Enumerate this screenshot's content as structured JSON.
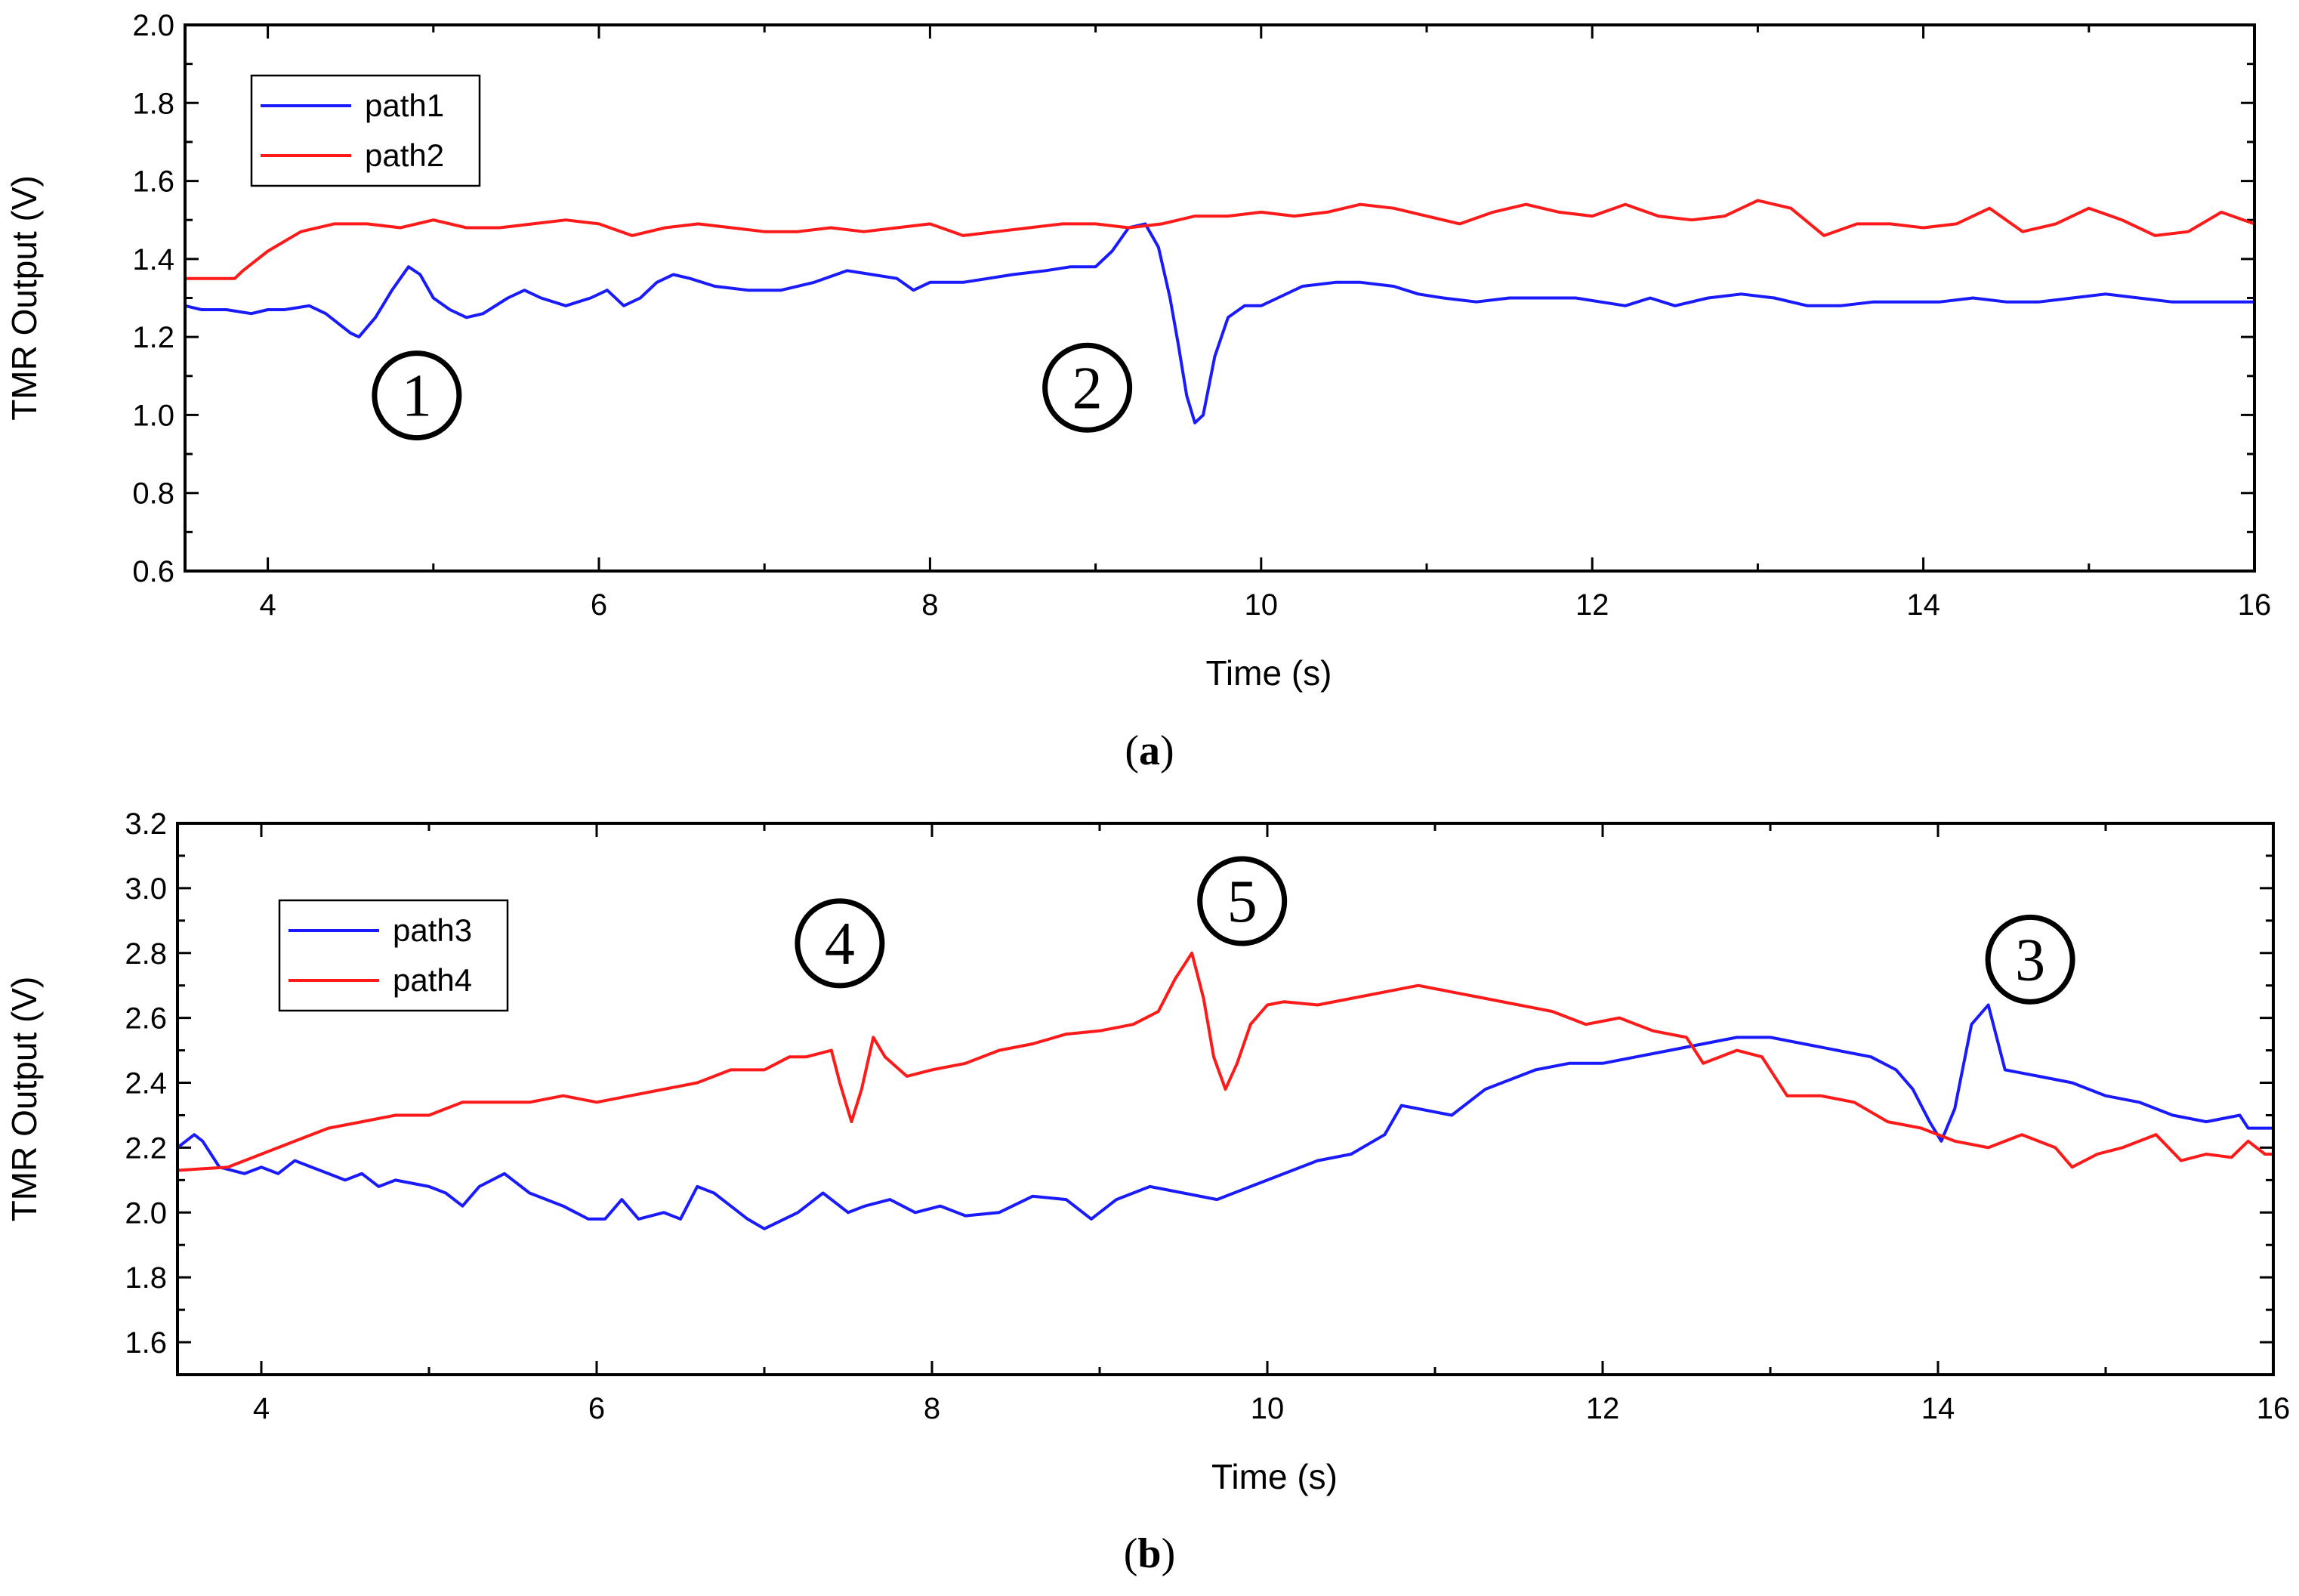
{
  "chart_data": [
    {
      "type": "line",
      "panel_label": "(a)",
      "caption_letter": "a",
      "title": "",
      "xlabel": "Time (s)",
      "ylabel": "TMR Output (V)",
      "xlim": [
        3.5,
        16
      ],
      "ylim": [
        0.6,
        2.0
      ],
      "xticks": [
        4,
        6,
        8,
        10,
        12,
        14,
        16
      ],
      "yticks": [
        0.6,
        0.8,
        1.0,
        1.2,
        1.4,
        1.6,
        1.8,
        2.0
      ],
      "xtick_labels": [
        "4",
        "6",
        "8",
        "10",
        "12",
        "14",
        "16"
      ],
      "ytick_labels": [
        "0.6",
        "0.8",
        "1.0",
        "1.2",
        "1.4",
        "1.6",
        "1.8",
        "2.0"
      ],
      "grid": false,
      "legend_position": "top-left",
      "series": [
        {
          "name": "path1",
          "color": "#1a1aff",
          "x": [
            3.5,
            3.6,
            3.75,
            3.9,
            4.0,
            4.1,
            4.25,
            4.35,
            4.5,
            4.55,
            4.65,
            4.75,
            4.85,
            4.92,
            5.0,
            5.1,
            5.2,
            5.3,
            5.45,
            5.55,
            5.65,
            5.8,
            5.95,
            6.05,
            6.15,
            6.25,
            6.35,
            6.45,
            6.55,
            6.7,
            6.9,
            7.1,
            7.3,
            7.5,
            7.65,
            7.8,
            7.9,
            8.0,
            8.1,
            8.2,
            8.35,
            8.5,
            8.7,
            8.85,
            9.0,
            9.1,
            9.2,
            9.3,
            9.38,
            9.45,
            9.5,
            9.55,
            9.6,
            9.65,
            9.72,
            9.8,
            9.9,
            10.0,
            10.1,
            10.25,
            10.45,
            10.6,
            10.8,
            10.95,
            11.1,
            11.3,
            11.5,
            11.7,
            11.9,
            12.05,
            12.2,
            12.35,
            12.5,
            12.7,
            12.9,
            13.1,
            13.3,
            13.5,
            13.7,
            13.9,
            14.1,
            14.3,
            14.5,
            14.7,
            14.9,
            15.1,
            15.3,
            15.5,
            15.7,
            15.9,
            16.0
          ],
          "y": [
            1.28,
            1.27,
            1.27,
            1.26,
            1.27,
            1.27,
            1.28,
            1.26,
            1.21,
            1.2,
            1.25,
            1.32,
            1.38,
            1.36,
            1.3,
            1.27,
            1.25,
            1.26,
            1.3,
            1.32,
            1.3,
            1.28,
            1.3,
            1.32,
            1.28,
            1.3,
            1.34,
            1.36,
            1.35,
            1.33,
            1.32,
            1.32,
            1.34,
            1.37,
            1.36,
            1.35,
            1.32,
            1.34,
            1.34,
            1.34,
            1.35,
            1.36,
            1.37,
            1.38,
            1.38,
            1.42,
            1.48,
            1.49,
            1.43,
            1.3,
            1.18,
            1.05,
            0.98,
            1.0,
            1.15,
            1.25,
            1.28,
            1.28,
            1.3,
            1.33,
            1.34,
            1.34,
            1.33,
            1.31,
            1.3,
            1.29,
            1.3,
            1.3,
            1.3,
            1.29,
            1.28,
            1.3,
            1.28,
            1.3,
            1.31,
            1.3,
            1.28,
            1.28,
            1.29,
            1.29,
            1.29,
            1.3,
            1.29,
            1.29,
            1.3,
            1.31,
            1.3,
            1.29,
            1.29,
            1.29,
            1.29
          ]
        },
        {
          "name": "path2",
          "color": "#ff1a1a",
          "x": [
            3.5,
            3.8,
            3.85,
            4.0,
            4.2,
            4.4,
            4.6,
            4.8,
            5.0,
            5.2,
            5.4,
            5.6,
            5.8,
            6.0,
            6.2,
            6.4,
            6.6,
            6.8,
            7.0,
            7.2,
            7.4,
            7.6,
            7.8,
            8.0,
            8.2,
            8.4,
            8.6,
            8.8,
            9.0,
            9.2,
            9.4,
            9.6,
            9.8,
            10.0,
            10.2,
            10.4,
            10.6,
            10.8,
            11.0,
            11.2,
            11.4,
            11.6,
            11.8,
            12.0,
            12.2,
            12.4,
            12.6,
            12.8,
            13.0,
            13.2,
            13.4,
            13.6,
            13.8,
            14.0,
            14.2,
            14.4,
            14.6,
            14.8,
            15.0,
            15.2,
            15.4,
            15.6,
            15.8,
            16.0
          ],
          "y": [
            1.35,
            1.35,
            1.37,
            1.42,
            1.47,
            1.49,
            1.49,
            1.48,
            1.5,
            1.48,
            1.48,
            1.49,
            1.5,
            1.49,
            1.46,
            1.48,
            1.49,
            1.48,
            1.47,
            1.47,
            1.48,
            1.47,
            1.48,
            1.49,
            1.46,
            1.47,
            1.48,
            1.49,
            1.49,
            1.48,
            1.49,
            1.51,
            1.51,
            1.52,
            1.51,
            1.52,
            1.54,
            1.53,
            1.51,
            1.49,
            1.52,
            1.54,
            1.52,
            1.51,
            1.54,
            1.51,
            1.5,
            1.51,
            1.55,
            1.53,
            1.46,
            1.49,
            1.49,
            1.48,
            1.49,
            1.53,
            1.47,
            1.49,
            1.53,
            1.5,
            1.46,
            1.47,
            1.52,
            1.49
          ]
        }
      ],
      "annotations": [
        {
          "text": "1",
          "x": 4.9,
          "y": 1.05
        },
        {
          "text": "2",
          "x": 8.95,
          "y": 1.07
        }
      ]
    },
    {
      "type": "line",
      "panel_label": "(b)",
      "caption_letter": "b",
      "title": "",
      "xlabel": "Time (s)",
      "ylabel": "TMR Output (V)",
      "xlim": [
        3.5,
        16
      ],
      "ylim": [
        1.5,
        3.2
      ],
      "xticks": [
        4,
        6,
        8,
        10,
        12,
        14,
        16
      ],
      "yticks": [
        1.6,
        1.8,
        2.0,
        2.2,
        2.4,
        2.6,
        2.8,
        3.0,
        3.2
      ],
      "xtick_labels": [
        "4",
        "6",
        "8",
        "10",
        "12",
        "14",
        "16"
      ],
      "ytick_labels": [
        "1.6",
        "1.8",
        "2.0",
        "2.2",
        "2.4",
        "2.6",
        "2.8",
        "3.0",
        "3.2"
      ],
      "grid": false,
      "legend_position": "top-left",
      "series": [
        {
          "name": "path3",
          "color": "#1a1aff",
          "x": [
            3.5,
            3.6,
            3.65,
            3.75,
            3.9,
            4.0,
            4.1,
            4.2,
            4.3,
            4.4,
            4.5,
            4.6,
            4.7,
            4.8,
            5.0,
            5.1,
            5.2,
            5.3,
            5.45,
            5.6,
            5.7,
            5.8,
            5.95,
            6.05,
            6.15,
            6.25,
            6.4,
            6.5,
            6.6,
            6.7,
            6.8,
            6.9,
            7.0,
            7.2,
            7.35,
            7.5,
            7.6,
            7.75,
            7.9,
            8.05,
            8.2,
            8.4,
            8.6,
            8.8,
            8.95,
            9.1,
            9.3,
            9.5,
            9.7,
            9.9,
            10.1,
            10.3,
            10.5,
            10.7,
            10.8,
            10.9,
            11.1,
            11.3,
            11.4,
            11.6,
            11.8,
            12.0,
            12.2,
            12.4,
            12.6,
            12.8,
            13.0,
            13.2,
            13.4,
            13.6,
            13.75,
            13.85,
            13.95,
            14.02,
            14.1,
            14.2,
            14.3,
            14.4,
            14.6,
            14.8,
            15.0,
            15.2,
            15.4,
            15.6,
            15.8,
            15.85,
            16.0
          ],
          "y": [
            2.2,
            2.24,
            2.22,
            2.14,
            2.12,
            2.14,
            2.12,
            2.16,
            2.14,
            2.12,
            2.1,
            2.12,
            2.08,
            2.1,
            2.08,
            2.06,
            2.02,
            2.08,
            2.12,
            2.06,
            2.04,
            2.02,
            1.98,
            1.98,
            2.04,
            1.98,
            2.0,
            1.98,
            2.08,
            2.06,
            2.02,
            1.98,
            1.95,
            2.0,
            2.06,
            2.0,
            2.02,
            2.04,
            2.0,
            2.02,
            1.99,
            2.0,
            2.05,
            2.04,
            1.98,
            2.04,
            2.08,
            2.06,
            2.04,
            2.08,
            2.12,
            2.16,
            2.18,
            2.24,
            2.33,
            2.32,
            2.3,
            2.38,
            2.4,
            2.44,
            2.46,
            2.46,
            2.48,
            2.5,
            2.52,
            2.54,
            2.54,
            2.52,
            2.5,
            2.48,
            2.44,
            2.38,
            2.28,
            2.22,
            2.32,
            2.58,
            2.64,
            2.44,
            2.42,
            2.4,
            2.36,
            2.34,
            2.3,
            2.28,
            2.3,
            2.26,
            2.26
          ]
        },
        {
          "name": "path4",
          "color": "#ff1a1a",
          "x": [
            3.5,
            3.8,
            4.0,
            4.2,
            4.4,
            4.6,
            4.8,
            5.0,
            5.2,
            5.4,
            5.6,
            5.8,
            6.0,
            6.2,
            6.4,
            6.6,
            6.8,
            7.0,
            7.15,
            7.25,
            7.4,
            7.45,
            7.52,
            7.58,
            7.65,
            7.72,
            7.85,
            8.0,
            8.2,
            8.4,
            8.6,
            8.8,
            9.0,
            9.2,
            9.35,
            9.45,
            9.55,
            9.62,
            9.68,
            9.75,
            9.82,
            9.9,
            10.0,
            10.1,
            10.3,
            10.5,
            10.7,
            10.9,
            11.1,
            11.3,
            11.5,
            11.7,
            11.9,
            12.1,
            12.3,
            12.5,
            12.6,
            12.8,
            12.95,
            13.1,
            13.3,
            13.5,
            13.7,
            13.9,
            14.1,
            14.3,
            14.5,
            14.7,
            14.8,
            14.95,
            15.1,
            15.3,
            15.45,
            15.6,
            15.75,
            15.85,
            15.95,
            16.0
          ],
          "y": [
            2.13,
            2.14,
            2.18,
            2.22,
            2.26,
            2.28,
            2.3,
            2.3,
            2.34,
            2.34,
            2.34,
            2.36,
            2.34,
            2.36,
            2.38,
            2.4,
            2.44,
            2.44,
            2.48,
            2.48,
            2.5,
            2.4,
            2.28,
            2.38,
            2.54,
            2.48,
            2.42,
            2.44,
            2.46,
            2.5,
            2.52,
            2.55,
            2.56,
            2.58,
            2.62,
            2.72,
            2.8,
            2.66,
            2.48,
            2.38,
            2.46,
            2.58,
            2.64,
            2.65,
            2.64,
            2.66,
            2.68,
            2.7,
            2.68,
            2.66,
            2.64,
            2.62,
            2.58,
            2.6,
            2.56,
            2.54,
            2.46,
            2.5,
            2.48,
            2.36,
            2.36,
            2.34,
            2.28,
            2.26,
            2.22,
            2.2,
            2.24,
            2.2,
            2.14,
            2.18,
            2.2,
            2.24,
            2.16,
            2.18,
            2.17,
            2.22,
            2.18,
            2.18
          ]
        }
      ],
      "annotations": [
        {
          "text": "4",
          "x": 7.45,
          "y": 2.83
        },
        {
          "text": "5",
          "x": 9.85,
          "y": 2.96
        },
        {
          "text": "3",
          "x": 14.55,
          "y": 2.78
        }
      ]
    }
  ]
}
